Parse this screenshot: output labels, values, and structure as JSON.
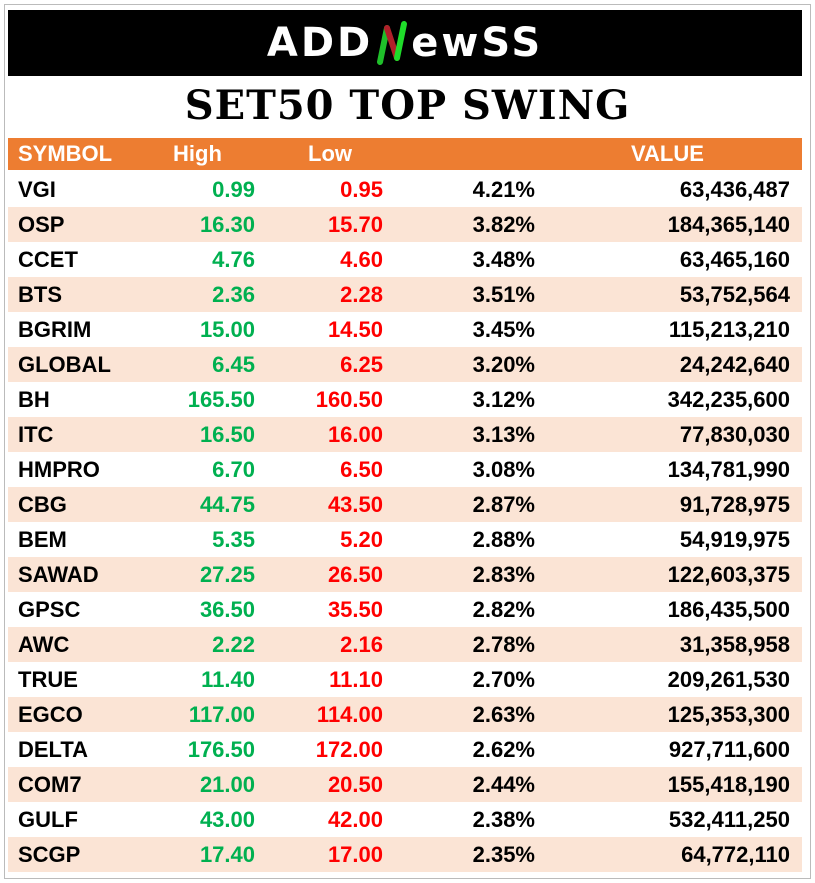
{
  "logo": {
    "text": "ADDNewss",
    "prefix": "ADD",
    "suffix": "ewSS"
  },
  "title": "SET50 TOP SWING",
  "colors": {
    "header": "#ED7D31",
    "alt_row": "#FBE4D5",
    "high": "#00B050",
    "low": "#FF0000"
  },
  "headers": {
    "symbol": "SYMBOL",
    "high": "High",
    "low": "Low",
    "pct": "",
    "value": "VALUE"
  },
  "rows": [
    {
      "symbol": "VGI",
      "high": "0.99",
      "low": "0.95",
      "pct": "4.21%",
      "value": "63,436,487"
    },
    {
      "symbol": "OSP",
      "high": "16.30",
      "low": "15.70",
      "pct": "3.82%",
      "value": "184,365,140"
    },
    {
      "symbol": "CCET",
      "high": "4.76",
      "low": "4.60",
      "pct": "3.48%",
      "value": "63,465,160"
    },
    {
      "symbol": "BTS",
      "high": "2.36",
      "low": "2.28",
      "pct": "3.51%",
      "value": "53,752,564"
    },
    {
      "symbol": "BGRIM",
      "high": "15.00",
      "low": "14.50",
      "pct": "3.45%",
      "value": "115,213,210"
    },
    {
      "symbol": "GLOBAL",
      "high": "6.45",
      "low": "6.25",
      "pct": "3.20%",
      "value": "24,242,640"
    },
    {
      "symbol": "BH",
      "high": "165.50",
      "low": "160.50",
      "pct": "3.12%",
      "value": "342,235,600"
    },
    {
      "symbol": "ITC",
      "high": "16.50",
      "low": "16.00",
      "pct": "3.13%",
      "value": "77,830,030"
    },
    {
      "symbol": "HMPRO",
      "high": "6.70",
      "low": "6.50",
      "pct": "3.08%",
      "value": "134,781,990"
    },
    {
      "symbol": "CBG",
      "high": "44.75",
      "low": "43.50",
      "pct": "2.87%",
      "value": "91,728,975"
    },
    {
      "symbol": "BEM",
      "high": "5.35",
      "low": "5.20",
      "pct": "2.88%",
      "value": "54,919,975"
    },
    {
      "symbol": "SAWAD",
      "high": "27.25",
      "low": "26.50",
      "pct": "2.83%",
      "value": "122,603,375"
    },
    {
      "symbol": "GPSC",
      "high": "36.50",
      "low": "35.50",
      "pct": "2.82%",
      "value": "186,435,500"
    },
    {
      "symbol": "AWC",
      "high": "2.22",
      "low": "2.16",
      "pct": "2.78%",
      "value": "31,358,958"
    },
    {
      "symbol": "TRUE",
      "high": "11.40",
      "low": "11.10",
      "pct": "2.70%",
      "value": "209,261,530"
    },
    {
      "symbol": "EGCO",
      "high": "117.00",
      "low": "114.00",
      "pct": "2.63%",
      "value": "125,353,300"
    },
    {
      "symbol": "DELTA",
      "high": "176.50",
      "low": "172.00",
      "pct": "2.62%",
      "value": "927,711,600"
    },
    {
      "symbol": "COM7",
      "high": "21.00",
      "low": "20.50",
      "pct": "2.44%",
      "value": "155,418,190"
    },
    {
      "symbol": "GULF",
      "high": "43.00",
      "low": "42.00",
      "pct": "2.38%",
      "value": "532,411,250"
    },
    {
      "symbol": "SCGP",
      "high": "17.40",
      "low": "17.00",
      "pct": "2.35%",
      "value": "64,772,110"
    }
  ]
}
